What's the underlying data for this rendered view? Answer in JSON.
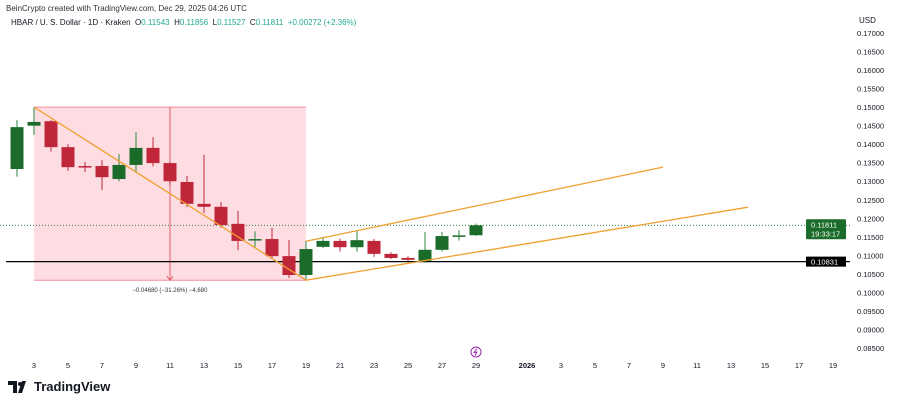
{
  "header": {
    "credit": "BeinCrypto created with TradingView.com, Dec 29, 2025 04:26 UTC",
    "symbol": "HBAR / U. S. Dollar · 1D · Kraken",
    "ohlc": {
      "o_label": "O",
      "o": "0.11543",
      "h_label": "H",
      "h": "0.11856",
      "l_label": "L",
      "l": "0.11527",
      "c_label": "C",
      "c": "0.11811",
      "change": "+0.00272 (+2.36%)"
    }
  },
  "currency": "USD",
  "logo_text": "TradingView",
  "colors": {
    "up": "#1b6b2a",
    "down": "#c0263a",
    "trend": "#f0a030",
    "box": "#fddde2",
    "support": "#000000"
  },
  "chart_data": {
    "type": "candlestick",
    "ylim": [
      0.0825,
      0.1725
    ],
    "y_ticks": [
      "0.17000",
      "0.16500",
      "0.16000",
      "0.15500",
      "0.15000",
      "0.14500",
      "0.14000",
      "0.13500",
      "0.13000",
      "0.12500",
      "0.12000",
      "0.11500",
      "0.11000",
      "0.10500",
      "0.10000",
      "0.09500",
      "0.09000",
      "0.08500"
    ],
    "x_ticks": [
      "3",
      "5",
      "7",
      "9",
      "11",
      "13",
      "15",
      "17",
      "19",
      "21",
      "23",
      "25",
      "27",
      "29",
      "2026",
      "3",
      "5",
      "7",
      "9",
      "11",
      "13",
      "15",
      "17",
      "19"
    ],
    "x_range": [
      "2025-12-02",
      "2026-01-20"
    ],
    "candles": [
      [
        "2025-12-02",
        0.1333,
        0.1465,
        0.1312,
        0.1446
      ],
      [
        "2025-12-03",
        0.145,
        0.15,
        0.1425,
        0.146
      ],
      [
        "2025-12-04",
        0.1462,
        0.1465,
        0.138,
        0.1392
      ],
      [
        "2025-12-05",
        0.1392,
        0.14,
        0.1328,
        0.1338
      ],
      [
        "2025-12-06",
        0.1341,
        0.1352,
        0.1325,
        0.1339
      ],
      [
        "2025-12-07",
        0.1341,
        0.1357,
        0.1276,
        0.1311
      ],
      [
        "2025-12-08",
        0.1306,
        0.1373,
        0.13,
        0.1344
      ],
      [
        "2025-12-09",
        0.1344,
        0.1433,
        0.1325,
        0.139
      ],
      [
        "2025-12-10",
        0.139,
        0.1419,
        0.134,
        0.1349
      ],
      [
        "2025-12-11",
        0.1349,
        0.1352,
        0.129,
        0.13
      ],
      [
        "2025-12-12",
        0.1298,
        0.1314,
        0.123,
        0.1239
      ],
      [
        "2025-12-13",
        0.1239,
        0.1371,
        0.1214,
        0.1231
      ],
      [
        "2025-12-14",
        0.1231,
        0.1244,
        0.1175,
        0.1182
      ],
      [
        "2025-12-15",
        0.1185,
        0.122,
        0.1114,
        0.1139
      ],
      [
        "2025-12-16",
        0.1142,
        0.1165,
        0.112,
        0.1144
      ],
      [
        "2025-12-17",
        0.1144,
        0.1174,
        0.109,
        0.1098
      ],
      [
        "2025-12-18",
        0.1098,
        0.1141,
        0.1039,
        0.1047
      ],
      [
        "2025-12-19",
        0.1047,
        0.1139,
        0.1035,
        0.1117
      ],
      [
        "2025-12-20",
        0.1123,
        0.115,
        0.112,
        0.1139
      ],
      [
        "2025-12-21",
        0.1139,
        0.1145,
        0.111,
        0.1122
      ],
      [
        "2025-12-22",
        0.1122,
        0.1165,
        0.111,
        0.1141
      ],
      [
        "2025-12-23",
        0.1139,
        0.1144,
        0.1096,
        0.1104
      ],
      [
        "2025-12-24",
        0.1104,
        0.1108,
        0.109,
        0.1093
      ],
      [
        "2025-12-25",
        0.1093,
        0.1098,
        0.1085,
        0.1088
      ],
      [
        "2025-12-26",
        0.1085,
        0.1163,
        0.108,
        0.1115
      ],
      [
        "2025-12-27",
        0.1115,
        0.1163,
        0.111,
        0.1152
      ],
      [
        "2025-12-28",
        0.1152,
        0.1168,
        0.114,
        0.1154
      ],
      [
        "2025-12-29",
        0.11543,
        0.11856,
        0.11527,
        0.11811
      ]
    ],
    "drawings": {
      "range_box": {
        "from": "2025-12-03",
        "to": "2025-12-19",
        "top": 0.15,
        "bottom": 0.1033,
        "measure_date": "2025-12-11",
        "label": "−0.04680 (−31.26%) −4,680"
      },
      "downtrend": [
        [
          "2025-12-03",
          0.15
        ],
        [
          "2025-12-19",
          0.1033
        ]
      ],
      "channel_lower": [
        [
          "2025-12-19",
          0.1033
        ],
        [
          "2026-01-14",
          0.123
        ]
      ],
      "channel_upper": [
        [
          "2025-12-19",
          0.1138
        ],
        [
          "2026-01-09",
          0.1338
        ]
      ],
      "support": {
        "price": 0.10831,
        "label": "0.10831"
      }
    },
    "last_price": {
      "price": 0.11811,
      "label": "0.11811",
      "countdown": "19:33:17"
    }
  }
}
